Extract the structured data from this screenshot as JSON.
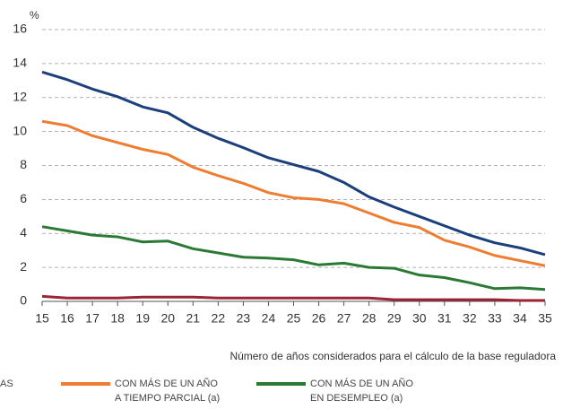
{
  "chart_data": {
    "type": "line",
    "y_unit_label": "%",
    "x_label": "Número de años considerados para el cálculo de la base reguladora",
    "x": [
      15,
      16,
      17,
      18,
      19,
      20,
      21,
      22,
      23,
      24,
      25,
      26,
      27,
      28,
      29,
      30,
      31,
      32,
      33,
      34,
      35
    ],
    "xlim": [
      15,
      35
    ],
    "xticks": [
      15,
      16,
      17,
      18,
      19,
      20,
      21,
      22,
      23,
      24,
      25,
      26,
      27,
      28,
      29,
      30,
      31,
      32,
      33,
      34,
      35
    ],
    "ylim": [
      0,
      16
    ],
    "yticks": [
      0,
      2,
      4,
      6,
      8,
      10,
      12,
      14,
      16
    ],
    "grid": true,
    "series": [
      {
        "name": [
          "AS"
        ],
        "color": "#1a3f7a",
        "values": [
          13.5,
          13.05,
          12.5,
          12.05,
          11.45,
          11.1,
          10.25,
          9.6,
          9.05,
          8.45,
          8.05,
          7.65,
          7.0,
          6.15,
          5.55,
          5.0,
          4.45,
          3.9,
          3.45,
          3.15,
          2.75
        ]
      },
      {
        "name": [
          "CON MÁS DE UN AÑO",
          "A TIEMPO PARCIAL (a)"
        ],
        "color": "#ee7d31",
        "values": [
          10.6,
          10.35,
          9.75,
          9.35,
          8.95,
          8.65,
          7.9,
          7.4,
          6.95,
          6.4,
          6.1,
          6.0,
          5.75,
          5.2,
          4.65,
          4.35,
          3.6,
          3.2,
          2.7,
          2.4,
          2.1
        ]
      },
      {
        "name": [
          "CON MÁS DE UN AÑO",
          "EN DESEMPLEO (a)"
        ],
        "color": "#2a7a35",
        "values": [
          4.4,
          4.15,
          3.9,
          3.8,
          3.5,
          3.55,
          3.1,
          2.85,
          2.6,
          2.55,
          2.45,
          2.15,
          2.25,
          2.0,
          1.95,
          1.55,
          1.4,
          1.1,
          0.75,
          0.8,
          0.7
        ]
      },
      {
        "color": "#9b2335",
        "values": [
          0.3,
          0.2,
          0.2,
          0.2,
          0.25,
          0.25,
          0.25,
          0.2,
          0.2,
          0.2,
          0.2,
          0.2,
          0.2,
          0.2,
          0.1,
          0.1,
          0.1,
          0.1,
          0.1,
          0.05,
          0.05
        ]
      }
    ]
  }
}
